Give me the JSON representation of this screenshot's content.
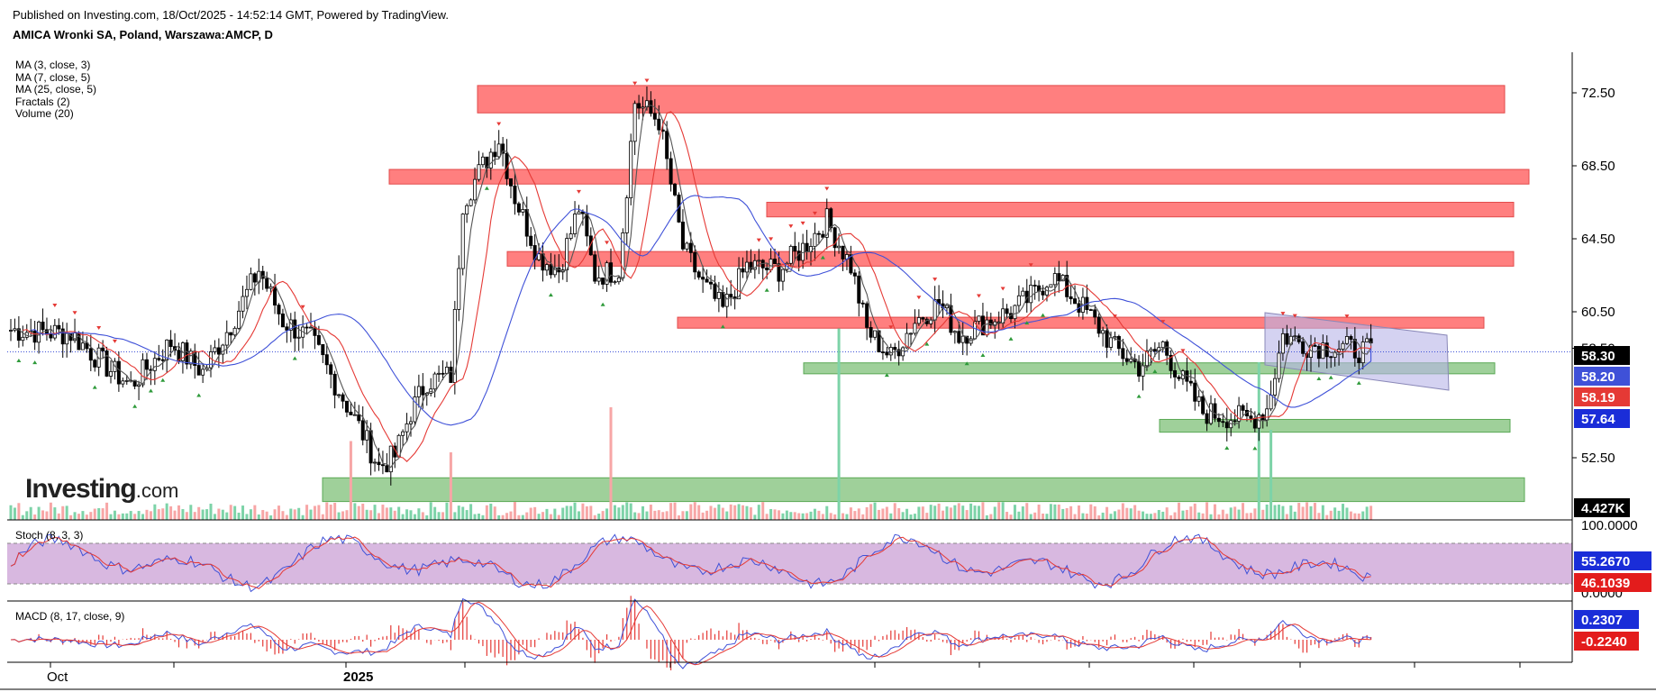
{
  "header": {
    "published": "Published on Investing.com, 18/Oct/2025 - 14:52:14 GMT, Powered by TradingView.",
    "symbol": "AMICA Wronki SA, Poland, Warszawa:AMCP, D"
  },
  "indicators": [
    "MA (3, close, 3)",
    "MA (7, close, 5)",
    "MA (25, close, 5)",
    "Fractals (2)",
    "Volume (20)"
  ],
  "logo": {
    "main": "Investing",
    "suffix": ".com"
  },
  "colors": {
    "up": "#000000",
    "down": "#000000",
    "ma_short": "#555555",
    "ma_mid": "#e53935",
    "ma_long": "#3f51d8",
    "resistance": "#ff7f7f",
    "support": "#9fd09a",
    "vol_up": "#7dd3a8",
    "vol_down": "#f7a6a6",
    "stoch_band": "#d8b8e0",
    "stoch_k": "#3f51d8",
    "stoch_d": "#e53935"
  },
  "chart_data": {
    "type": "candlestick",
    "x_labels": [
      "Oct",
      "2025"
    ],
    "y_ticks": [
      "72.50",
      "68.50",
      "64.50",
      "60.50",
      "58.50",
      "52.50"
    ],
    "price_labels": [
      {
        "value": "58.30",
        "color": "#000000"
      },
      {
        "value": "58.20",
        "color": "#3f51d8"
      },
      {
        "value": "58.19",
        "color": "#e53935"
      },
      {
        "value": "57.64",
        "color": "#1a2dd8"
      },
      {
        "value": "4.427K",
        "color": "#000000"
      }
    ],
    "resistance_zones": [
      [
        71.4,
        72.9
      ],
      [
        67.5,
        68.3
      ],
      [
        65.7,
        66.5
      ],
      [
        63.0,
        63.8
      ],
      [
        59.6,
        60.2
      ]
    ],
    "support_zones": [
      [
        57.1,
        57.7
      ],
      [
        53.9,
        54.6
      ],
      [
        50.1,
        51.4
      ]
    ],
    "last_price": 58.3,
    "ohlc_keypoints": [
      [
        0,
        59.5
      ],
      [
        15,
        59.3
      ],
      [
        25,
        57.3
      ],
      [
        30,
        56.5
      ],
      [
        40,
        58.8
      ],
      [
        48,
        57.2
      ],
      [
        55,
        59.8
      ],
      [
        62,
        62.8
      ],
      [
        68,
        60.0
      ],
      [
        75,
        59.0
      ],
      [
        82,
        56.2
      ],
      [
        88,
        53.8
      ],
      [
        92,
        52.0
      ],
      [
        96,
        52.6
      ],
      [
        100,
        55.0
      ],
      [
        104,
        56.7
      ],
      [
        110,
        57.0
      ],
      [
        113,
        66.5
      ],
      [
        118,
        68.5
      ],
      [
        122,
        70.0
      ],
      [
        126,
        66.8
      ],
      [
        132,
        63.5
      ],
      [
        137,
        62.8
      ],
      [
        142,
        66.2
      ],
      [
        146,
        62.5
      ],
      [
        152,
        62.8
      ],
      [
        156,
        72.0
      ],
      [
        162,
        71.0
      ],
      [
        168,
        64.0
      ],
      [
        173,
        62.0
      ],
      [
        178,
        60.6
      ],
      [
        184,
        63.0
      ],
      [
        192,
        62.8
      ],
      [
        198,
        64.0
      ],
      [
        204,
        65.5
      ],
      [
        210,
        63.0
      ],
      [
        214,
        59.5
      ],
      [
        220,
        58.0
      ],
      [
        226,
        60.0
      ],
      [
        232,
        61.0
      ],
      [
        237,
        59.2
      ],
      [
        244,
        60.0
      ],
      [
        250,
        60.5
      ],
      [
        256,
        61.5
      ],
      [
        260,
        62.5
      ],
      [
        266,
        61.2
      ],
      [
        270,
        60.2
      ],
      [
        276,
        58.5
      ],
      [
        282,
        57.5
      ],
      [
        288,
        58.7
      ],
      [
        292,
        57.0
      ],
      [
        298,
        55.0
      ],
      [
        303,
        54.8
      ],
      [
        310,
        54.6
      ],
      [
        314,
        55.2
      ],
      [
        318,
        59.2
      ],
      [
        324,
        58.7
      ],
      [
        334,
        58.5
      ],
      [
        340,
        58.3
      ]
    ],
    "volume_spikes": [
      [
        85,
        3.5
      ],
      [
        110,
        3.0
      ],
      [
        150,
        5.0
      ],
      [
        207,
        8.5
      ],
      [
        312,
        7.0
      ],
      [
        315,
        4.0
      ]
    ],
    "stoch": {
      "label": "Stoch (8, 3, 3)",
      "ticks": [
        "100.0000",
        "0.0000"
      ],
      "k_value": "55.2670",
      "d_value": "46.1039"
    },
    "macd": {
      "label": "MACD (8, 17, close, 9)",
      "ticks": [
        "0.2307"
      ],
      "value_pos": "0.2307",
      "value_neg": "-0.2240"
    }
  }
}
